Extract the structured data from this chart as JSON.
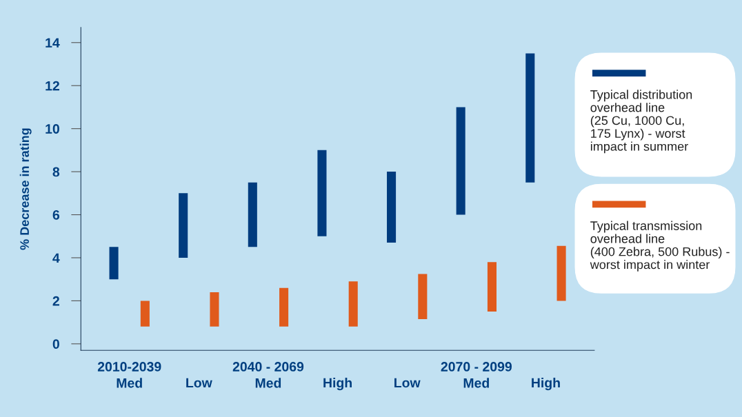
{
  "chart_data": {
    "type": "bar",
    "ylabel": "% Decrease in rating",
    "categories": [
      "2010-2039\nMed",
      "Low",
      "2040 - 2069\nMed",
      "High",
      "Low",
      "2070 - 2099\nMed",
      "High"
    ],
    "series": [
      {
        "name": "Typical distribution\noverhead line\n(25 Cu, 1000 Cu,\n175 Lynx) - worst\nimpact in summer",
        "color": "#003b7e",
        "base": [
          3,
          4,
          4.5,
          5,
          4.7,
          6,
          7.5
        ],
        "values": [
          1.5,
          3,
          3,
          4,
          3.3,
          5,
          6
        ]
      },
      {
        "name": "Typical transmission\noverhead line\n(400 Zebra, 500 Rubus) -\nworst impact in winter",
        "color": "#e05a1c",
        "base": [
          0.8,
          0.8,
          0.8,
          0.8,
          1.15,
          1.5,
          2.0
        ],
        "values": [
          1.2,
          1.6,
          1.8,
          2.1,
          2.1,
          2.3,
          2.55
        ]
      }
    ],
    "ylim": [
      -0.3,
      14.7
    ],
    "yticks": [
      0,
      2,
      4,
      6,
      8,
      10,
      12,
      14
    ],
    "grid": false,
    "legend": "right"
  }
}
